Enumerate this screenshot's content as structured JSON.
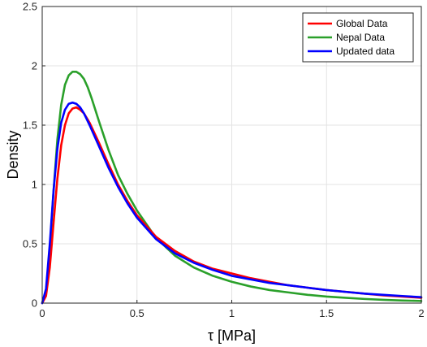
{
  "chart_data": {
    "type": "line",
    "title": "",
    "xlabel": "τ [MPa]",
    "ylabel": "Density",
    "xlim": [
      0,
      2
    ],
    "ylim": [
      0,
      2.5
    ],
    "x_ticks": [
      "0",
      "0.5",
      "1",
      "1.5",
      "2"
    ],
    "y_ticks": [
      "0",
      "0.5",
      "1",
      "1.5",
      "2",
      "2.5"
    ],
    "grid": true,
    "legend_position": "top-right",
    "series": [
      {
        "name": "Global Data",
        "color": "#ff0000",
        "x": [
          0,
          0.02,
          0.04,
          0.06,
          0.08,
          0.1,
          0.12,
          0.14,
          0.16,
          0.18,
          0.2,
          0.22,
          0.25,
          0.3,
          0.35,
          0.4,
          0.45,
          0.5,
          0.6,
          0.7,
          0.8,
          0.9,
          1.0,
          1.1,
          1.2,
          1.3,
          1.4,
          1.5,
          1.6,
          1.7,
          1.8,
          1.9,
          2.0
        ],
        "y": [
          0,
          0.06,
          0.3,
          0.68,
          1.05,
          1.33,
          1.5,
          1.6,
          1.64,
          1.65,
          1.63,
          1.6,
          1.52,
          1.35,
          1.17,
          1.0,
          0.86,
          0.74,
          0.56,
          0.44,
          0.35,
          0.29,
          0.25,
          0.21,
          0.18,
          0.15,
          0.13,
          0.11,
          0.095,
          0.08,
          0.065,
          0.055,
          0.045
        ]
      },
      {
        "name": "Nepal Data",
        "color": "#2aa02a",
        "x": [
          0,
          0.02,
          0.04,
          0.06,
          0.08,
          0.1,
          0.12,
          0.14,
          0.16,
          0.18,
          0.2,
          0.22,
          0.24,
          0.26,
          0.3,
          0.35,
          0.4,
          0.45,
          0.5,
          0.6,
          0.7,
          0.8,
          0.9,
          1.0,
          1.1,
          1.2,
          1.3,
          1.4,
          1.5,
          1.6,
          1.7,
          1.8,
          1.9,
          2.0
        ],
        "y": [
          0,
          0.1,
          0.45,
          0.95,
          1.38,
          1.67,
          1.84,
          1.92,
          1.95,
          1.95,
          1.93,
          1.89,
          1.82,
          1.73,
          1.53,
          1.29,
          1.08,
          0.92,
          0.78,
          0.55,
          0.4,
          0.3,
          0.23,
          0.18,
          0.14,
          0.11,
          0.09,
          0.07,
          0.055,
          0.045,
          0.035,
          0.028,
          0.022,
          0.018
        ]
      },
      {
        "name": "Updated data",
        "color": "#0000ff",
        "x": [
          0,
          0.02,
          0.04,
          0.06,
          0.08,
          0.1,
          0.12,
          0.14,
          0.16,
          0.18,
          0.2,
          0.22,
          0.25,
          0.3,
          0.35,
          0.4,
          0.45,
          0.5,
          0.6,
          0.7,
          0.8,
          0.9,
          1.0,
          1.1,
          1.2,
          1.3,
          1.4,
          1.5,
          1.6,
          1.7,
          1.8,
          1.9,
          2.0
        ],
        "y": [
          0,
          0.12,
          0.5,
          0.95,
          1.3,
          1.52,
          1.63,
          1.68,
          1.69,
          1.68,
          1.65,
          1.6,
          1.5,
          1.32,
          1.14,
          0.98,
          0.84,
          0.72,
          0.54,
          0.42,
          0.34,
          0.28,
          0.23,
          0.2,
          0.17,
          0.15,
          0.13,
          0.11,
          0.095,
          0.08,
          0.07,
          0.06,
          0.05
        ]
      }
    ]
  }
}
